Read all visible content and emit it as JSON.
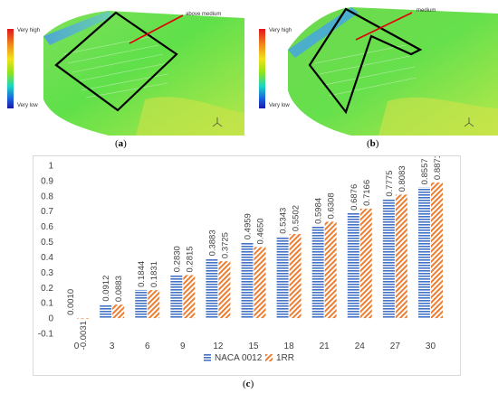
{
  "panels": [
    {
      "label": "a",
      "scale_high": "Very high",
      "scale_low": "Very low",
      "annotation": "above medium"
    },
    {
      "label": "b",
      "scale_high": "Very high",
      "scale_low": "Very low",
      "annotation": "medium"
    }
  ],
  "chart_label": "c",
  "chart_data": {
    "type": "bar",
    "categories": [
      "0",
      "3",
      "6",
      "9",
      "12",
      "15",
      "18",
      "21",
      "24",
      "27",
      "30"
    ],
    "series": [
      {
        "name": "NACA 0012",
        "values": [
          0.001,
          0.0912,
          0.1844,
          0.283,
          0.3883,
          0.4959,
          0.5343,
          0.5984,
          0.6876,
          0.7775,
          0.8557
        ],
        "labels": [
          "0.0010",
          "0.0912",
          "0.1844",
          "0.2830",
          "0.3883",
          "0.4959",
          "0.5343",
          "0.5984",
          "0.6876",
          "0.7775",
          "0.8557"
        ],
        "color": "#4472c4",
        "pattern": "horizontal-stripes"
      },
      {
        "name": "1RR",
        "values": [
          -0.0031,
          0.0883,
          0.1831,
          0.2815,
          0.3725,
          0.465,
          0.5502,
          0.6308,
          0.7166,
          0.8083,
          0.8871
        ],
        "labels": [
          "-0.0031",
          "0.0883",
          "0.1831",
          "0.2815",
          "0.3725",
          "0.4650",
          "0.5502",
          "0.6308",
          "0.7166",
          "0.8083",
          "0.8871"
        ],
        "color": "#ed7d31",
        "pattern": "diagonal-stripes"
      }
    ],
    "yticks": [
      "-0.1",
      "0",
      "0.1",
      "0.2",
      "0.3",
      "0.4",
      "0.5",
      "0.6",
      "0.7",
      "0.8",
      "0.9",
      "1"
    ],
    "ylim": [
      -0.1,
      1
    ],
    "grid": false,
    "legend": "bottom"
  }
}
